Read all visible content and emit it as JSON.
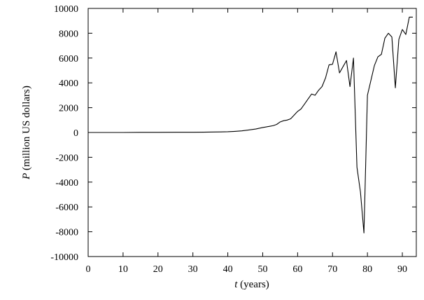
{
  "chart_data": {
    "type": "line",
    "title": "",
    "xlabel": {
      "var": "t",
      "unit": " (years)"
    },
    "ylabel": {
      "var": "P",
      "unit": " (million US dollars)"
    },
    "xlim": [
      0,
      94
    ],
    "ylim": [
      -10000,
      10000
    ],
    "xticks": [
      0,
      10,
      20,
      30,
      40,
      50,
      60,
      70,
      80,
      90
    ],
    "yticks": [
      -10000,
      -8000,
      -6000,
      -4000,
      -2000,
      0,
      2000,
      4000,
      6000,
      8000,
      10000
    ],
    "grid": false,
    "series": [
      {
        "x": [
          0,
          5,
          10,
          15,
          20,
          25,
          30,
          33,
          36,
          38,
          40,
          42,
          44,
          46,
          48,
          50,
          52,
          53,
          54,
          55,
          56,
          57,
          58,
          59,
          60,
          61,
          62,
          63,
          64,
          65,
          66,
          67,
          68,
          69,
          70,
          71,
          72,
          73,
          74,
          75,
          76,
          77,
          78,
          79,
          80,
          81,
          82,
          83,
          84,
          85,
          86,
          87,
          88,
          89,
          90,
          91,
          92,
          93
        ],
        "y": [
          0,
          0,
          0,
          10,
          10,
          15,
          20,
          25,
          40,
          45,
          60,
          90,
          130,
          200,
          280,
          400,
          500,
          550,
          650,
          850,
          950,
          1000,
          1100,
          1400,
          1700,
          1900,
          2300,
          2700,
          3100,
          3000,
          3400,
          3700,
          4400,
          5450,
          5500,
          6500,
          4800,
          5300,
          5800,
          3700,
          6000,
          -2800,
          -4800,
          -8100,
          3000,
          4200,
          5400,
          6100,
          6300,
          7600,
          8000,
          7700,
          3600,
          7500,
          8300,
          7900,
          9300,
          9300
        ]
      }
    ]
  }
}
